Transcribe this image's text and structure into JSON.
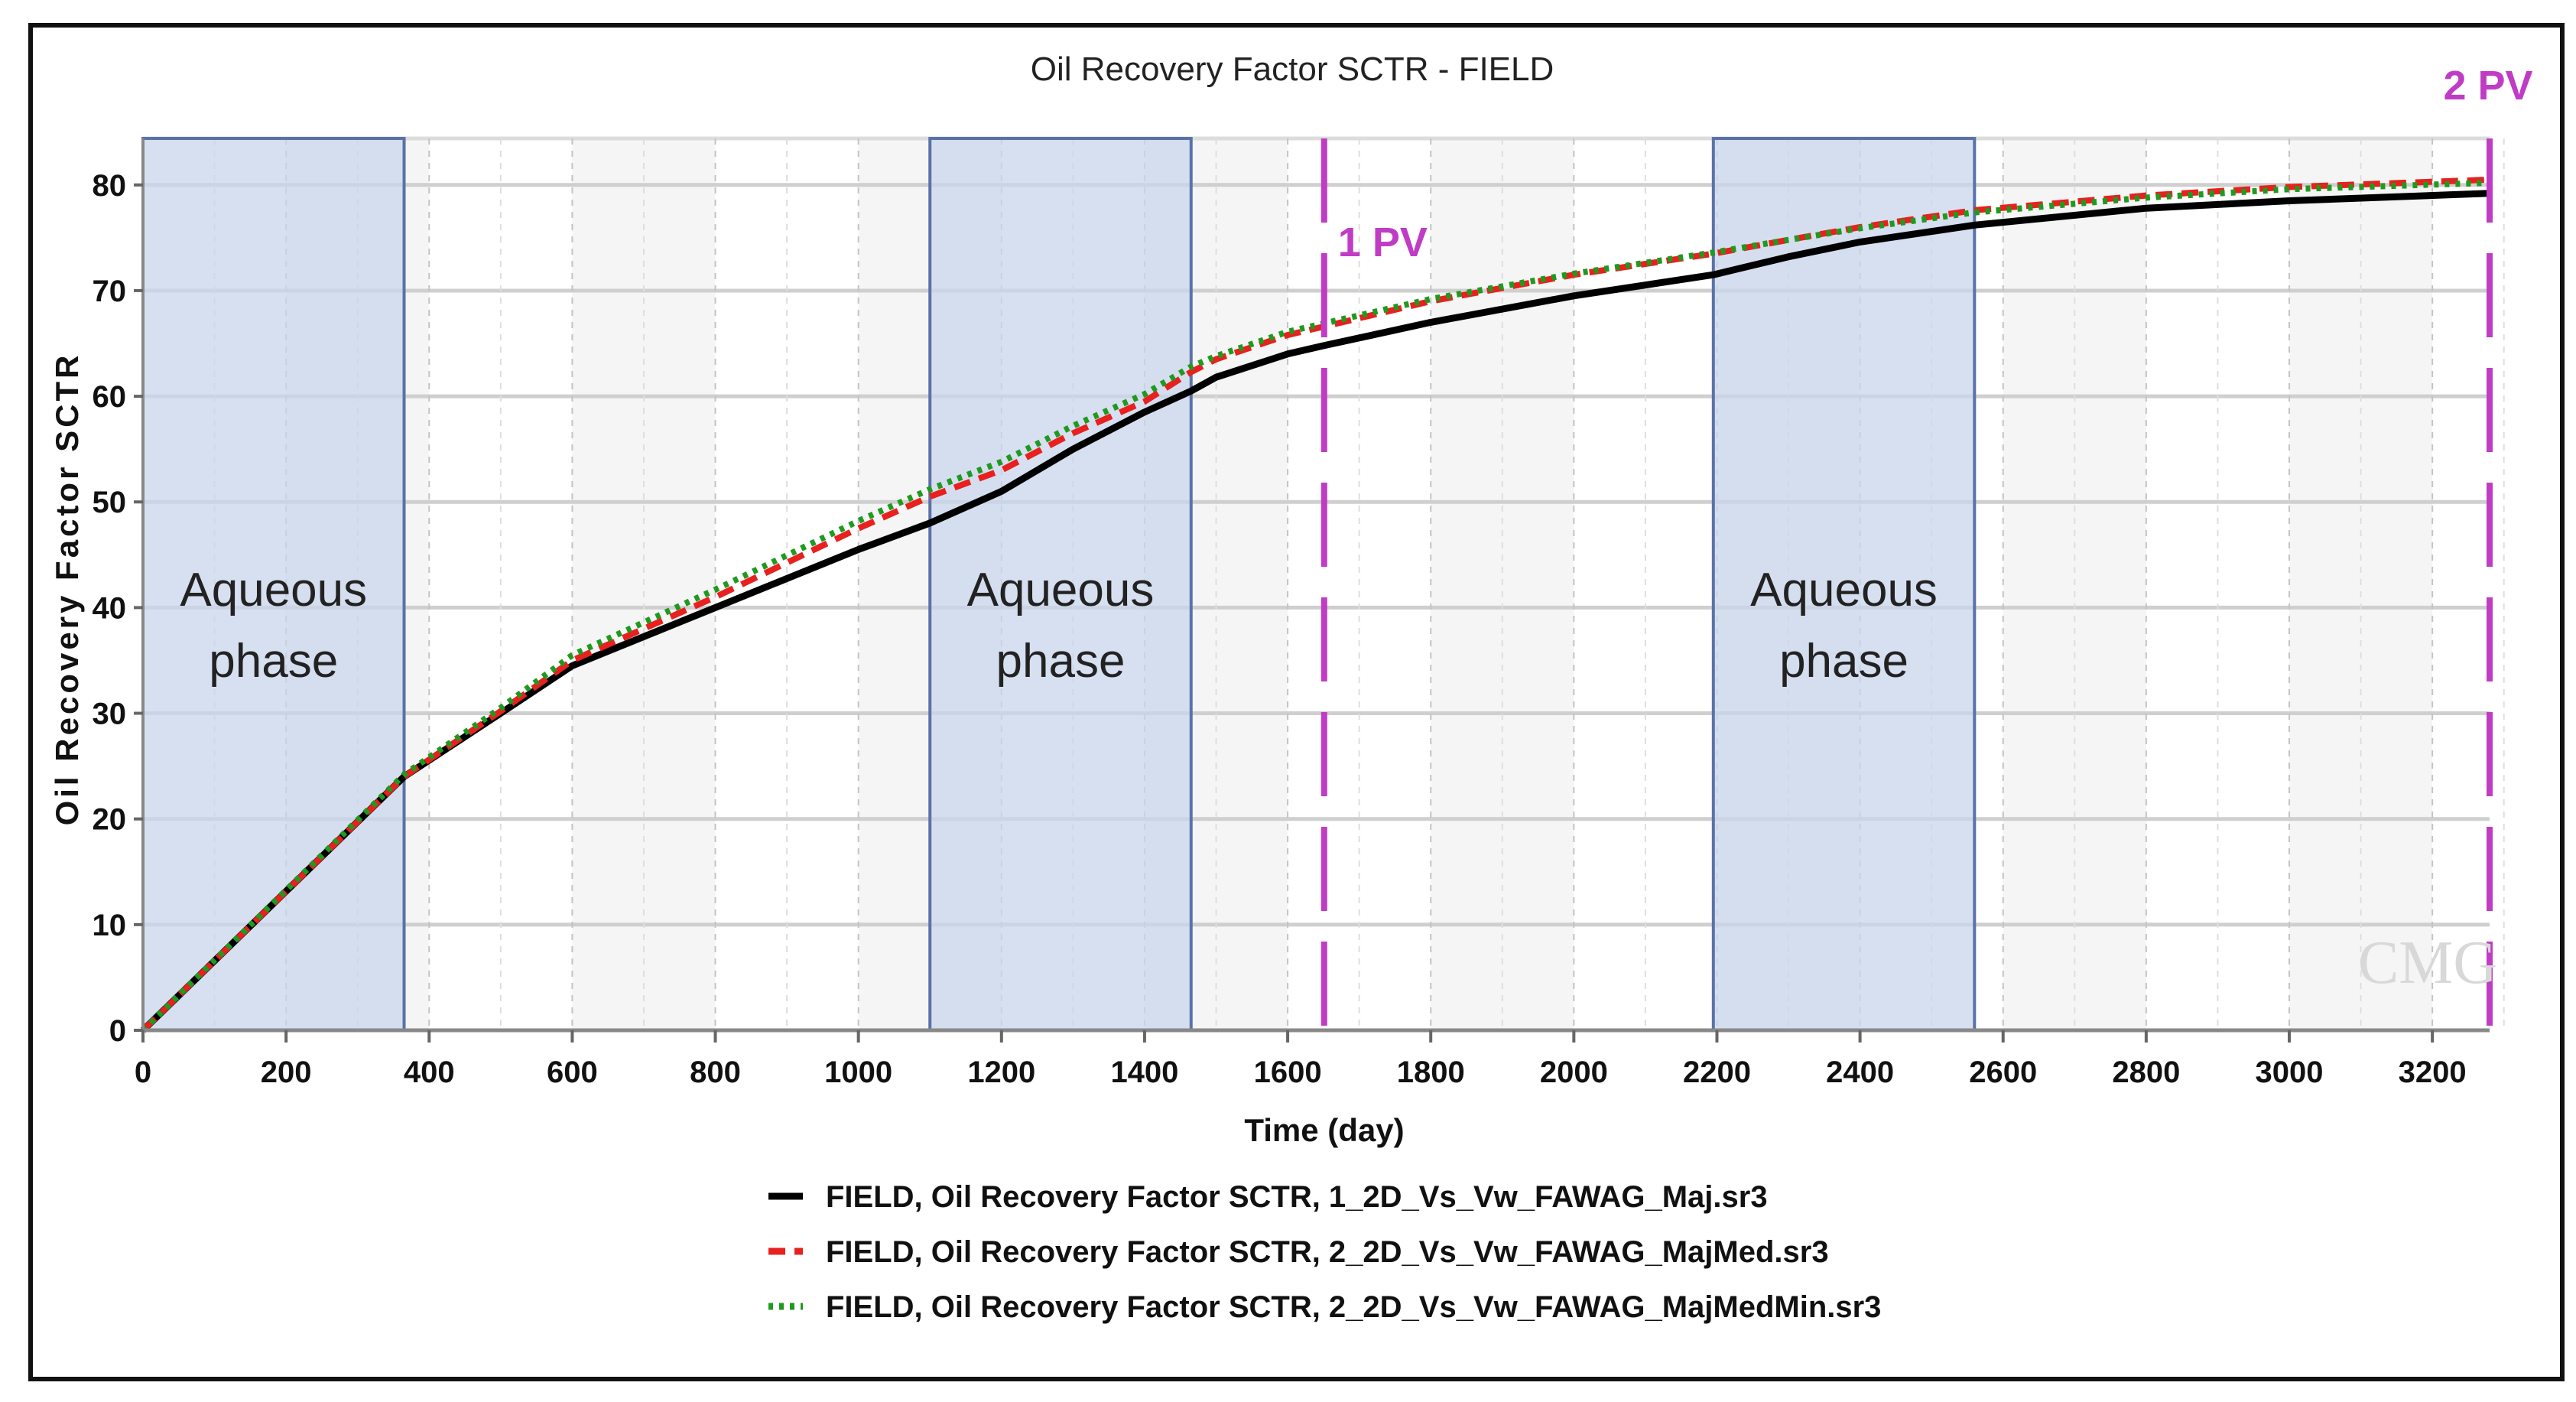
{
  "chart_data": {
    "type": "line",
    "title": "Oil Recovery Factor SCTR - FIELD",
    "xlabel": "Time (day)",
    "ylabel": "Oil Recovery Factor SCTR",
    "xlim": [
      0,
      3280
    ],
    "ylim": [
      0,
      84.4
    ],
    "xticks": [
      0,
      200,
      400,
      600,
      800,
      1000,
      1200,
      1400,
      1600,
      1800,
      2000,
      2200,
      2400,
      2600,
      2800,
      3000,
      3200
    ],
    "yticks": [
      0,
      10,
      20,
      30,
      40,
      50,
      60,
      70,
      80
    ],
    "grid": true,
    "legend_position": "bottom",
    "watermark": "CMG",
    "annotations": {
      "bands": [
        {
          "label_line1": "Aqueous",
          "label_line2": "phase",
          "x_start": 0,
          "x_end": 365
        },
        {
          "label_line1": "Aqueous",
          "label_line2": "phase",
          "x_start": 1100,
          "x_end": 1465
        },
        {
          "label_line1": "Aqueous",
          "label_line2": "phase",
          "x_start": 2195,
          "x_end": 2560
        }
      ],
      "vlines": [
        {
          "label": "1 PV",
          "x": 1651
        },
        {
          "label": "2 PV",
          "x": 3280
        }
      ],
      "band_color": "#c9d6ec",
      "band_border": "#5a72a8",
      "vline_color": "#c03cc4"
    },
    "series": [
      {
        "name": "FIELD, Oil Recovery Factor SCTR, 1_2D_Vs_Vw_FAWAG_Maj.sr3",
        "color": "#000000",
        "style": "solid",
        "x": [
          0,
          365,
          500,
          600,
          800,
          1000,
          1100,
          1200,
          1300,
          1400,
          1465,
          1500,
          1600,
          1651,
          1800,
          2000,
          2195,
          2300,
          2400,
          2560,
          2800,
          3000,
          3280
        ],
        "y": [
          0,
          24,
          30,
          34.5,
          40,
          45.5,
          48,
          51,
          55,
          58.5,
          60.5,
          61.8,
          64,
          64.8,
          67,
          69.5,
          71.5,
          73.2,
          74.6,
          76.2,
          77.8,
          78.5,
          79.2
        ]
      },
      {
        "name": "FIELD, Oil Recovery Factor SCTR, 2_2D_Vs_Vw_FAWAG_MajMed.sr3",
        "color": "#e8201e",
        "style": "dashed",
        "x": [
          0,
          365,
          500,
          600,
          800,
          1000,
          1100,
          1200,
          1300,
          1400,
          1465,
          1500,
          1600,
          1651,
          1800,
          2000,
          2195,
          2300,
          2400,
          2560,
          2800,
          3000,
          3280
        ],
        "y": [
          0,
          24,
          30.2,
          35,
          41,
          47.5,
          50.5,
          53,
          56.5,
          59.5,
          62.3,
          63.5,
          65.8,
          66.6,
          69,
          71.5,
          73.5,
          74.8,
          76,
          77.6,
          79,
          79.8,
          80.5
        ]
      },
      {
        "name": "FIELD, Oil Recovery Factor SCTR, 2_2D_Vs_Vw_FAWAG_MajMedMin.sr3",
        "color": "#1f9a1f",
        "style": "dotted",
        "x": [
          0,
          365,
          500,
          600,
          800,
          1000,
          1100,
          1200,
          1300,
          1400,
          1465,
          1500,
          1600,
          1651,
          1800,
          2000,
          2195,
          2300,
          2400,
          2560,
          2800,
          3000,
          3280
        ],
        "y": [
          0,
          24.2,
          30.5,
          35.5,
          41.7,
          48.2,
          51.2,
          53.8,
          57.2,
          60.2,
          62.8,
          63.8,
          66.1,
          66.9,
          69.2,
          71.6,
          73.6,
          74.8,
          75.9,
          77.4,
          78.8,
          79.6,
          80.2
        ]
      }
    ]
  }
}
